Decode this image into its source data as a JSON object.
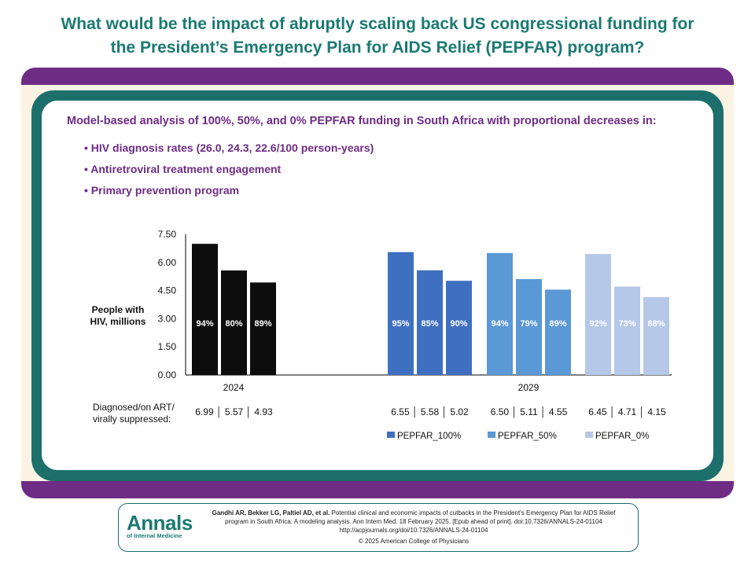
{
  "title": {
    "line1": "What would be the impact of abruptly scaling back US congressional funding for",
    "line2": "the President’s Emergency Plan for AIDS Relief (PEPFAR) program?"
  },
  "subtitle": "Model-based analysis of 100%, 50%, and 0% PEPFAR funding in South Africa with proportional decreases in:",
  "bullets": [
    "• HIV diagnosis rates (26.0, 24.3, 22.6/100 person-years)",
    "• Antiretroviral treatment engagement",
    "• Primary prevention program"
  ],
  "chart_data": {
    "type": "bar",
    "title": "",
    "ylabel_line1": "People with",
    "ylabel_line2": "HIV, millions",
    "ylim": [
      0,
      7.5
    ],
    "yticks": [
      "7.50",
      "6.00",
      "4.50",
      "3.00",
      "1.50",
      "0.00"
    ],
    "ytick_values": [
      7.5,
      6.0,
      4.5,
      3.0,
      1.5,
      0.0
    ],
    "groups": [
      {
        "name": "2024",
        "color": "#0d0d0d",
        "values": [
          6.99,
          5.57,
          4.93
        ],
        "labels": [
          "94%",
          "80%",
          "89%"
        ],
        "value_text": "6.99 │ 5.57 │ 4.93"
      },
      {
        "name": "PEPFAR_100%",
        "color": "#3f6fc0",
        "values": [
          6.55,
          5.58,
          5.02
        ],
        "labels": [
          "95%",
          "85%",
          "90%"
        ],
        "value_text": "6.55 │ 5.58 │ 5.02"
      },
      {
        "name": "PEPFAR_50%",
        "color": "#5a98d6",
        "values": [
          6.5,
          5.11,
          4.55
        ],
        "labels": [
          "94%",
          "79%",
          "89%"
        ],
        "value_text": "6.50 │ 5.11 │ 4.55"
      },
      {
        "name": "PEPFAR_0%",
        "color": "#b5c8e8",
        "values": [
          6.45,
          4.71,
          4.15
        ],
        "labels": [
          "92%",
          "73%",
          "88%"
        ],
        "value_text": "6.45 │ 4.71 │ 4.15"
      }
    ],
    "xlabels": [
      "2024",
      "2029"
    ],
    "row_label_line1": "Diagnosed/on ART/",
    "row_label_line2": "virally suppressed:",
    "legend": [
      {
        "label": "PEPFAR_100%",
        "color": "#3f6fc0"
      },
      {
        "label": "PEPFAR_50%",
        "color": "#5a98d6"
      },
      {
        "label": "PEPFAR_0%",
        "color": "#b5c8e8"
      }
    ]
  },
  "citation": {
    "logo_main": "Annals",
    "logo_sub": "of Internal Medicine",
    "authors": "Gandhi AR, Bekker LG, Paltiel AD, et al.",
    "text1": " Potential clinical and economic impacts of cutbacks in the President’s Emergency Plan for AIDS Relief",
    "text2": "program in South Africa: A modeling analysis. Ann Intern Med. 18 February 2025. [Epub ahead of print]. doi:10.7326/ANNALS-24-01104",
    "url": "http://acpjournals.org/doi/10.7326/ANNALS-24-01104",
    "copyright": "© 2025 American College of Physicians"
  }
}
